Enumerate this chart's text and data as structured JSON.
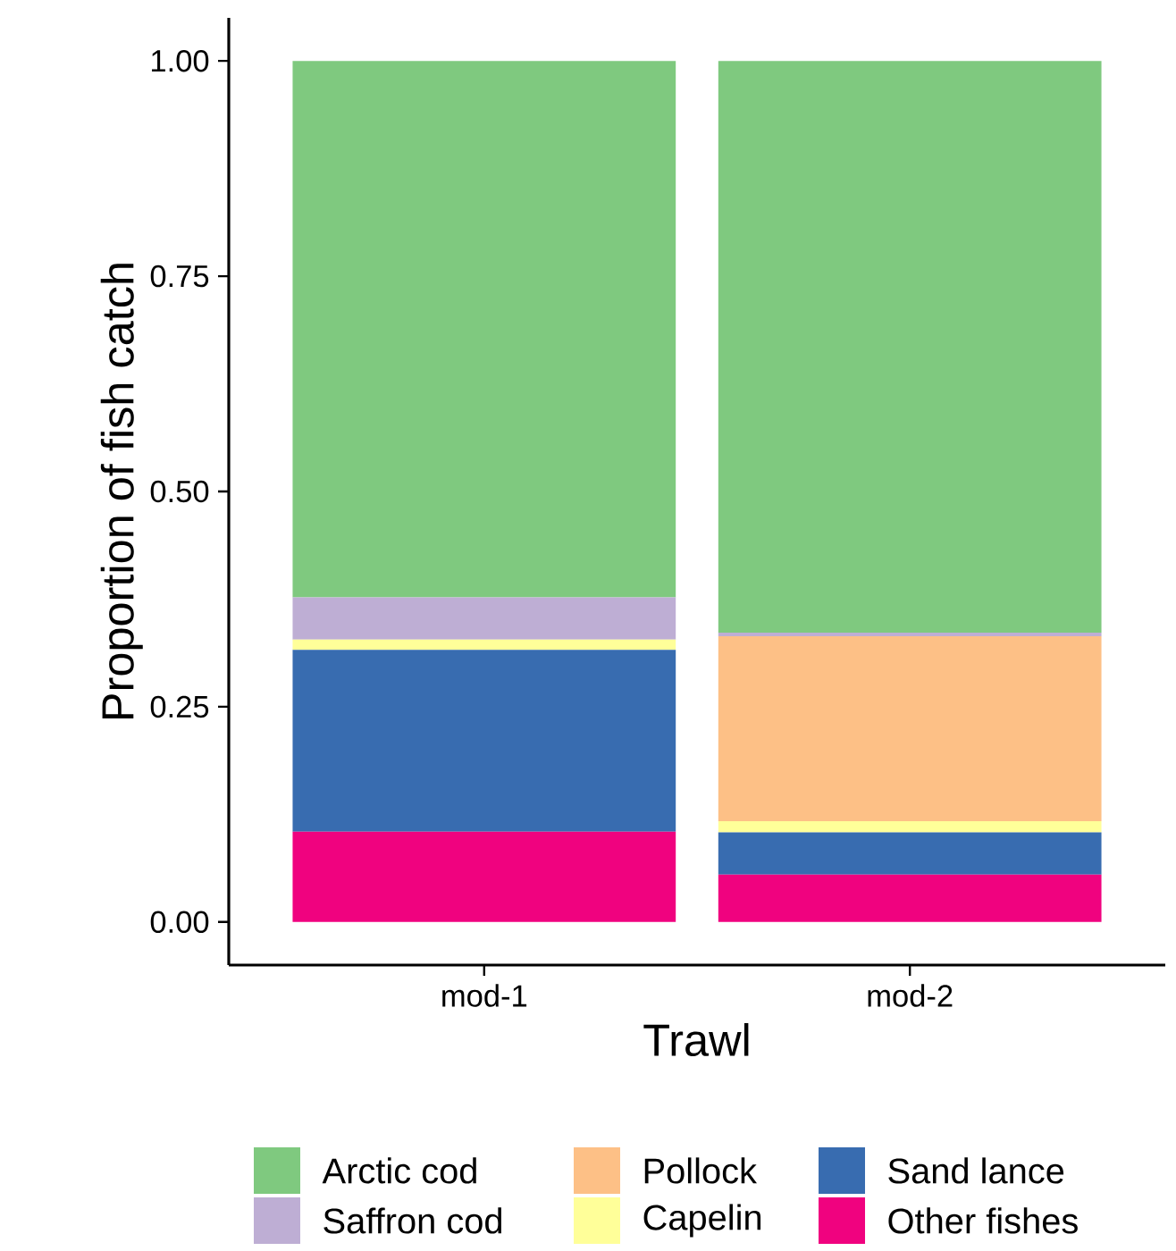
{
  "chart_data": {
    "type": "bar",
    "stacked": true,
    "xlabel": "Trawl",
    "ylabel": "Proportion of fish catch",
    "categories": [
      "mod-1",
      "mod-2"
    ],
    "series": [
      {
        "name": "Other fishes",
        "color": "#f0027f",
        "values": [
          0.105,
          0.055
        ]
      },
      {
        "name": "Sand lance",
        "color": "#386cb0",
        "values": [
          0.211,
          0.049
        ]
      },
      {
        "name": "Capelin",
        "color": "#ffff99",
        "values": [
          0.012,
          0.013
        ]
      },
      {
        "name": "Pollock",
        "color": "#fdc086",
        "values": [
          0,
          0.215
        ]
      },
      {
        "name": "Saffron cod",
        "color": "#beaed4",
        "values": [
          0.049,
          0.004
        ]
      },
      {
        "name": "Arctic cod",
        "color": "#7fc97f",
        "values": [
          0.623,
          0.664
        ]
      }
    ],
    "ylim": [
      -0.05,
      1.05
    ],
    "yticks": [
      {
        "value": 0,
        "label": "0.00"
      },
      {
        "value": 0.25,
        "label": "0.25"
      },
      {
        "value": 0.5,
        "label": "0.50"
      },
      {
        "value": 0.75,
        "label": "0.75"
      },
      {
        "value": 1,
        "label": "1.00"
      }
    ],
    "legend": "bottom"
  }
}
